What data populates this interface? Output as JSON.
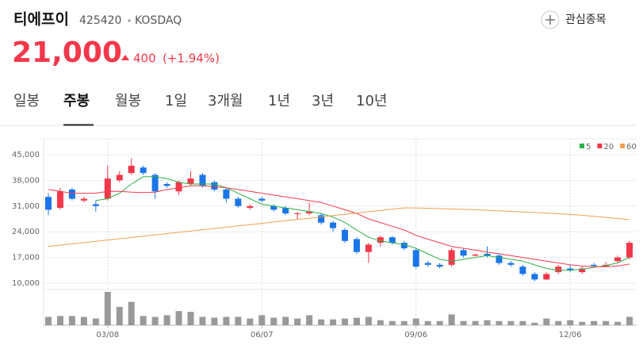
{
  "header": {
    "name": "티에프이",
    "code": "425420",
    "market": "KOSDAQ",
    "watch": "관심종목",
    "price": "21,000",
    "change": "400",
    "change_pct": "(+1.94%)"
  },
  "tabs": [
    "일봉",
    "주봉",
    "월봉",
    "1일",
    "3개월",
    "1년",
    "3년",
    "10년"
  ],
  "active_tab": 1,
  "chart_data": {
    "type": "candlestick",
    "categories": [
      null,
      null,
      null,
      null,
      null,
      "03/08",
      null,
      null,
      null,
      null,
      null,
      null,
      null,
      null,
      null,
      null,
      null,
      null,
      "06/07",
      null,
      null,
      null,
      null,
      null,
      null,
      null,
      null,
      null,
      null,
      null,
      null,
      "09/06",
      null,
      null,
      null,
      null,
      null,
      null,
      null,
      null,
      null,
      null,
      null,
      null,
      "12/06",
      null,
      null,
      null,
      null,
      null
    ],
    "open": [
      33500,
      30500,
      35500,
      32500,
      31500,
      33000,
      38000,
      40000,
      41500,
      39500,
      37000,
      35000,
      37000,
      39500,
      37500,
      35500,
      33000,
      30500,
      33000,
      31000,
      30500,
      29000,
      29000,
      28500,
      26500,
      24500,
      22000,
      18500,
      21000,
      22500,
      21000,
      19000,
      15500,
      15000,
      15000,
      19000,
      17500,
      18000,
      17500,
      15500,
      14500,
      12500,
      11000,
      13000,
      14000,
      13000,
      15000,
      14500,
      16000,
      17000
    ],
    "high": [
      34500,
      36000,
      36000,
      33500,
      32500,
      42000,
      40500,
      44000,
      42000,
      40000,
      37500,
      38000,
      40500,
      40000,
      38000,
      36000,
      33500,
      31500,
      33500,
      31500,
      31000,
      29500,
      32000,
      29000,
      27000,
      25000,
      22500,
      21000,
      23000,
      22800,
      21500,
      19500,
      16000,
      15500,
      19500,
      19500,
      18000,
      20000,
      18000,
      16000,
      15000,
      13000,
      13000,
      15000,
      15000,
      14500,
      15500,
      15800,
      17500,
      21500
    ],
    "low": [
      28500,
      30000,
      32500,
      32000,
      29500,
      32500,
      37500,
      39500,
      39500,
      33000,
      36000,
      34000,
      36500,
      36000,
      35000,
      32000,
      30500,
      30000,
      32000,
      29500,
      28500,
      27500,
      28500,
      26000,
      24000,
      21000,
      18000,
      15500,
      20000,
      20500,
      19000,
      14000,
      14500,
      14000,
      14500,
      17000,
      17300,
      17000,
      15000,
      14500,
      12000,
      10500,
      10800,
      12500,
      13000,
      12500,
      14500,
      14500,
      15500,
      16500
    ],
    "close": [
      30000,
      35000,
      33000,
      33000,
      31000,
      38500,
      39500,
      42000,
      40000,
      35000,
      36500,
      37500,
      38500,
      36500,
      35500,
      33000,
      31000,
      31000,
      32500,
      30000,
      29000,
      29000,
      29500,
      26500,
      25000,
      21500,
      18500,
      20500,
      22500,
      21000,
      19500,
      14500,
      15000,
      14500,
      19000,
      17500,
      17800,
      17500,
      15500,
      15000,
      12500,
      11000,
      12500,
      14500,
      13500,
      14000,
      14700,
      15000,
      17000,
      21000
    ],
    "volume": [
      10,
      11,
      11,
      10,
      8,
      40,
      22,
      28,
      11,
      10,
      12,
      17,
      16,
      10,
      9,
      10,
      10,
      8,
      12,
      9,
      10,
      8,
      12,
      7,
      7,
      8,
      9,
      10,
      6,
      5,
      5,
      8,
      5,
      5,
      13,
      5,
      5,
      6,
      5,
      5,
      5,
      3,
      8,
      5,
      6,
      4,
      5,
      5,
      4,
      10
    ],
    "series": [
      {
        "name": "5",
        "color": "#2bb14a",
        "values": [
          null,
          null,
          null,
          null,
          32500,
          33000,
          34500,
          37000,
          39000,
          39000,
          38500,
          37500,
          37000,
          37000,
          37000,
          36000,
          34500,
          33000,
          31500,
          31000,
          30500,
          30000,
          29500,
          29000,
          28000,
          26500,
          24500,
          22500,
          21500,
          21000,
          20500,
          19500,
          18000,
          16500,
          16000,
          16500,
          17000,
          17500,
          17000,
          16500,
          16000,
          15000,
          14000,
          13500,
          13500,
          13800,
          14300,
          14800,
          15500,
          17000
        ]
      },
      {
        "name": "20",
        "color": "#f2384a",
        "values": [
          35500,
          35000,
          34500,
          34500,
          34500,
          35000,
          35000,
          34800,
          34700,
          34800,
          35500,
          36000,
          36500,
          36500,
          36300,
          36000,
          35500,
          35000,
          34500,
          34000,
          33500,
          33000,
          32500,
          32000,
          31000,
          30000,
          29000,
          27500,
          26500,
          25500,
          24500,
          23000,
          22000,
          21000,
          20000,
          19500,
          19000,
          18500,
          18000,
          17500,
          17000,
          16500,
          16000,
          15500,
          15000,
          14700,
          14500,
          14500,
          14700,
          15200
        ]
      },
      {
        "name": "60",
        "color": "#f0a050",
        "values": [
          20000,
          20350,
          20700,
          21050,
          21400,
          21750,
          22100,
          22450,
          22800,
          23150,
          23500,
          23850,
          24200,
          24550,
          24900,
          25250,
          25600,
          25950,
          26300,
          26650,
          27000,
          27350,
          27700,
          28050,
          28400,
          28750,
          29100,
          29450,
          29800,
          30150,
          30500,
          30500,
          30400,
          30300,
          30200,
          30100,
          30000,
          29850,
          29700,
          29550,
          29400,
          29250,
          29100,
          28900,
          28700,
          28500,
          28200,
          27900,
          27600,
          27300
        ]
      }
    ],
    "up_color": "#f2384a",
    "down_color": "#1a75e8",
    "volume_color": "#999999",
    "ylim": [
      10000,
      45000
    ],
    "yticks": [
      {
        "value": 10000,
        "label": "10,000"
      },
      {
        "value": 17000,
        "label": "17,000"
      },
      {
        "value": 24000,
        "label": "24,000"
      },
      {
        "value": 31000,
        "label": "31,000"
      },
      {
        "value": 38000,
        "label": "38,000"
      },
      {
        "value": 45000,
        "label": "45,000"
      }
    ],
    "grid": true
  }
}
